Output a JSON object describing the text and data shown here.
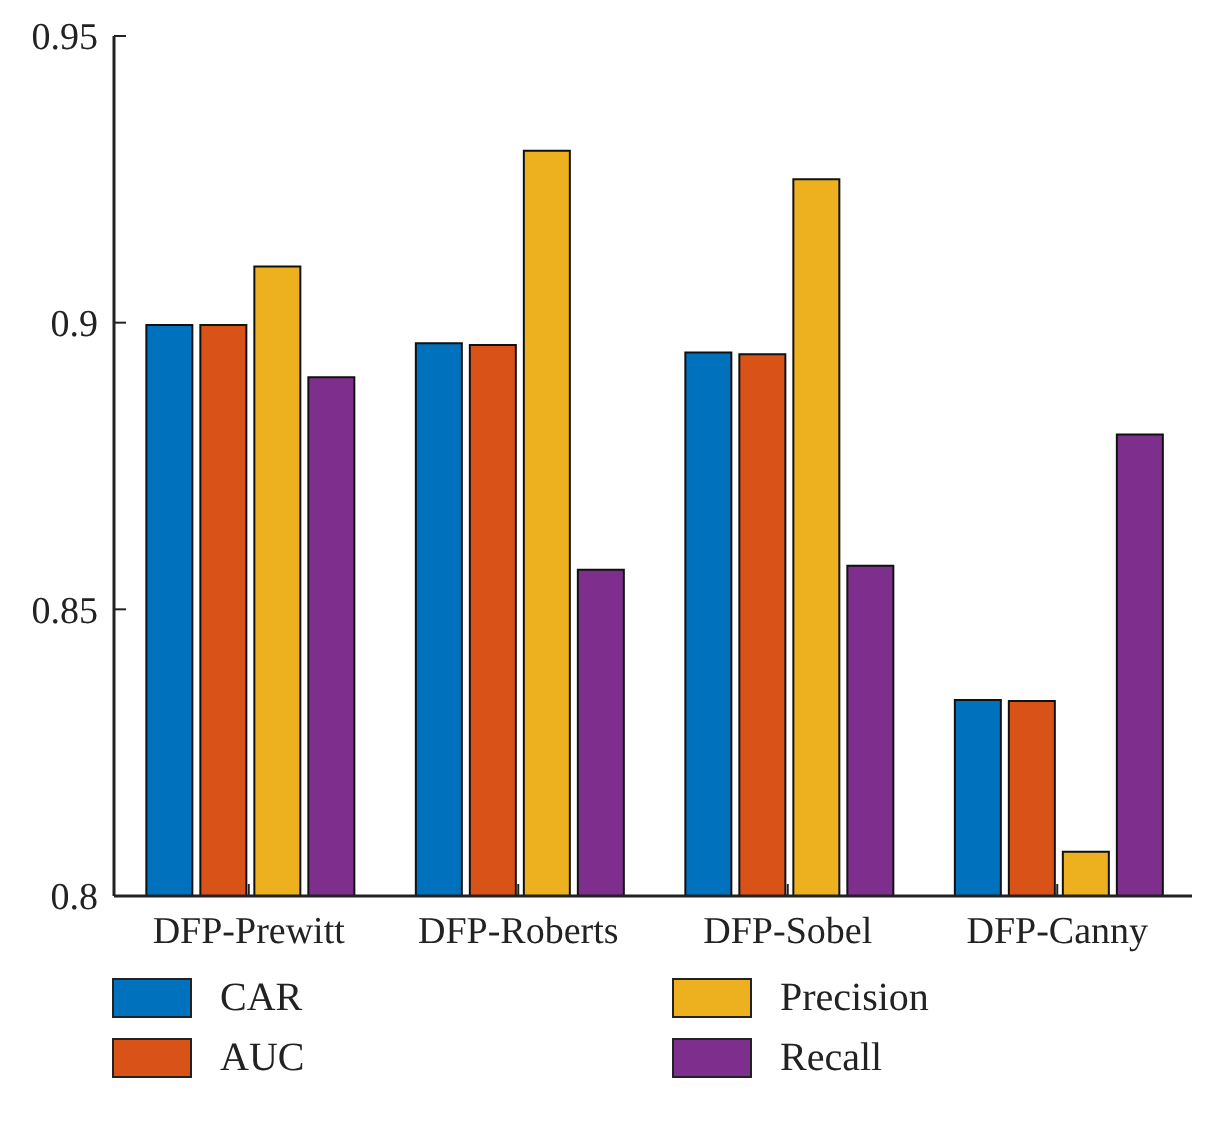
{
  "chart_data": {
    "type": "bar",
    "categories": [
      "DFP-Prewitt",
      "DFP-Roberts",
      "DFP-Sobel",
      "DFP-Canny"
    ],
    "series": [
      {
        "name": "CAR",
        "color": "#0072bd",
        "values": [
          0.8996,
          0.8964,
          0.8948,
          0.8342
        ]
      },
      {
        "name": "AUC",
        "color": "#d95319",
        "values": [
          0.8996,
          0.8961,
          0.8945,
          0.834
        ]
      },
      {
        "name": "Precision",
        "color": "#edb120",
        "values": [
          0.9098,
          0.93,
          0.925,
          0.8077
        ]
      },
      {
        "name": "Recall",
        "color": "#7e2f8e",
        "values": [
          0.8905,
          0.8569,
          0.8576,
          0.8805
        ]
      }
    ],
    "ylim": [
      0.8,
      0.95
    ],
    "yticks": [
      0.8,
      0.85,
      0.9,
      0.95
    ],
    "grid": false,
    "legend": "bottom"
  }
}
